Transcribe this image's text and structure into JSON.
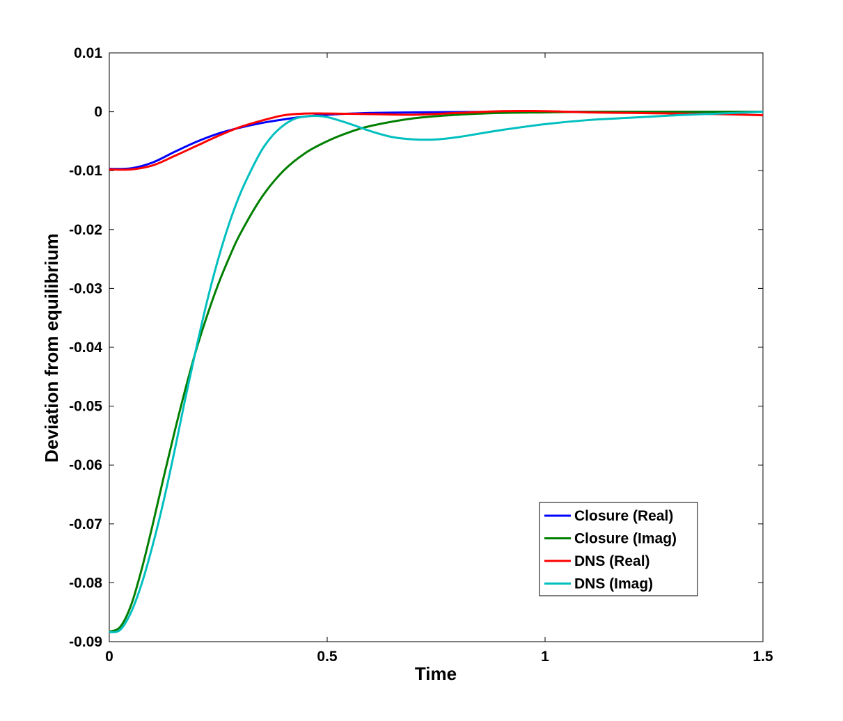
{
  "chart_data": {
    "type": "line",
    "title": "",
    "xlabel": "Time",
    "ylabel": "Deviation from equilibrium",
    "xlim": [
      0,
      1.5
    ],
    "ylim": [
      -0.09,
      0.01
    ],
    "xticks": [
      0,
      0.5,
      1,
      1.5
    ],
    "xtick_labels": [
      "0",
      "0.5",
      "1",
      "1.5"
    ],
    "yticks": [
      0.01,
      0,
      -0.01,
      -0.02,
      -0.03,
      -0.04,
      -0.05,
      -0.06,
      -0.07,
      -0.08,
      -0.09
    ],
    "ytick_labels": [
      "0.01",
      "0",
      "-0.01",
      "-0.02",
      "-0.03",
      "-0.04",
      "-0.05",
      "-0.06",
      "-0.07",
      "-0.08",
      "-0.09"
    ],
    "grid": false,
    "legend_position": "bottom-right",
    "series": [
      {
        "name": "Closure (Real)",
        "color": "#0000ff",
        "x": [
          0,
          0.05,
          0.1,
          0.15,
          0.2,
          0.25,
          0.3,
          0.35,
          0.4,
          0.45,
          0.5,
          0.6,
          0.7,
          0.8,
          0.9,
          1.0,
          1.1,
          1.2,
          1.3,
          1.4,
          1.5
        ],
        "y": [
          -0.0097,
          -0.0096,
          -0.0086,
          -0.0068,
          -0.0051,
          -0.0037,
          -0.0027,
          -0.0019,
          -0.0013,
          -0.0008,
          -0.0005,
          -0.0002,
          -0.0001,
          -5e-05,
          0,
          0,
          0,
          0,
          0,
          0,
          0
        ]
      },
      {
        "name": "Closure (Imag)",
        "color": "#007f00",
        "x": [
          0,
          0.025,
          0.05,
          0.075,
          0.1,
          0.125,
          0.15,
          0.175,
          0.2,
          0.225,
          0.25,
          0.275,
          0.3,
          0.35,
          0.4,
          0.45,
          0.5,
          0.55,
          0.6,
          0.7,
          0.8,
          0.9,
          1.0,
          1.1,
          1.2,
          1.3,
          1.4,
          1.5
        ],
        "y": [
          -0.0883,
          -0.0875,
          -0.0838,
          -0.0775,
          -0.07,
          -0.062,
          -0.0543,
          -0.047,
          -0.0403,
          -0.0345,
          -0.0293,
          -0.0248,
          -0.0208,
          -0.0145,
          -0.01,
          -0.007,
          -0.005,
          -0.0035,
          -0.0024,
          -0.0011,
          -0.0005,
          -0.0002,
          -0.0001,
          0,
          0,
          0,
          0,
          0
        ]
      },
      {
        "name": "DNS (Real)",
        "color": "#ff0000",
        "x": [
          0,
          0.05,
          0.1,
          0.15,
          0.2,
          0.25,
          0.3,
          0.35,
          0.4,
          0.45,
          0.5,
          0.6,
          0.7,
          0.8,
          0.9,
          1.0,
          1.1,
          1.2,
          1.3,
          1.4,
          1.5
        ],
        "y": [
          -0.0098,
          -0.0098,
          -0.0091,
          -0.0075,
          -0.0058,
          -0.0041,
          -0.0026,
          -0.0015,
          -0.0006,
          -0.0003,
          -0.0003,
          -0.0004,
          -0.0005,
          -0.0002,
          0.0001,
          0.0001,
          -0.0001,
          -0.0002,
          -0.0003,
          -0.0004,
          -0.0006
        ]
      },
      {
        "name": "DNS (Imag)",
        "color": "#00bfbf",
        "x": [
          0,
          0.025,
          0.05,
          0.075,
          0.1,
          0.125,
          0.15,
          0.175,
          0.2,
          0.225,
          0.25,
          0.275,
          0.3,
          0.325,
          0.35,
          0.375,
          0.4,
          0.425,
          0.45,
          0.475,
          0.5,
          0.55,
          0.6,
          0.65,
          0.7,
          0.75,
          0.8,
          0.85,
          0.9,
          1.0,
          1.1,
          1.2,
          1.3,
          1.4,
          1.5
        ],
        "y": [
          -0.0884,
          -0.088,
          -0.085,
          -0.08,
          -0.0735,
          -0.066,
          -0.0575,
          -0.0485,
          -0.04,
          -0.032,
          -0.025,
          -0.019,
          -0.014,
          -0.01,
          -0.0065,
          -0.004,
          -0.0023,
          -0.0012,
          -0.0008,
          -0.0007,
          -0.0009,
          -0.002,
          -0.0033,
          -0.0043,
          -0.0047,
          -0.0047,
          -0.0043,
          -0.0037,
          -0.0031,
          -0.0021,
          -0.0014,
          -0.001,
          -0.0006,
          -0.0003,
          0
        ]
      }
    ]
  }
}
